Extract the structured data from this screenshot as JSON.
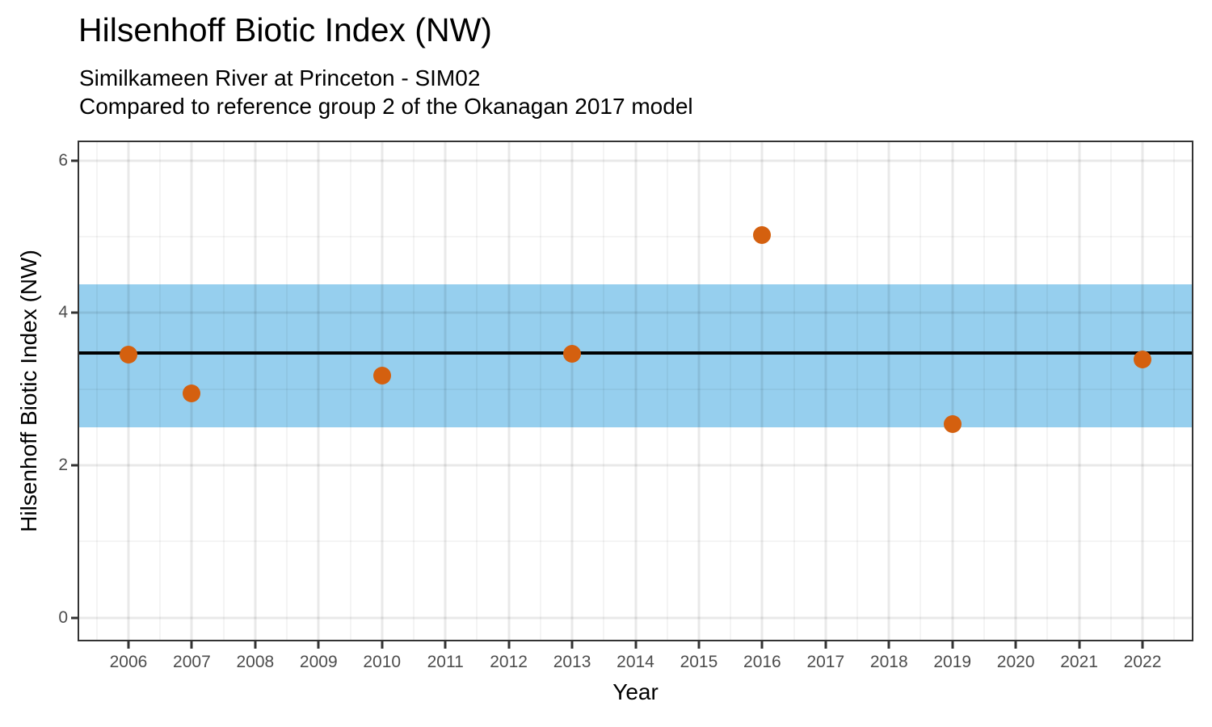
{
  "header": {
    "title": "Hilsenhoff Biotic Index (NW)",
    "subtitle1": "Similkameen River at Princeton - SIM02",
    "subtitle2": "Compared to reference group 2 of the Okanagan 2017 model"
  },
  "chart_data": {
    "type": "scatter",
    "title": "Hilsenhoff Biotic Index (NW)",
    "subtitle": [
      "Similkameen River at Princeton - SIM02",
      "Compared to reference group 2 of the Okanagan 2017 model"
    ],
    "xlabel": "Year",
    "ylabel": "Hilsenhoff Biotic Index (NW)",
    "x": [
      2006,
      2007,
      2010,
      2013,
      2016,
      2019,
      2022
    ],
    "y": [
      3.45,
      2.94,
      3.18,
      3.46,
      5.02,
      2.54,
      3.39
    ],
    "reference_line": 3.47,
    "reference_band": {
      "lower": 2.5,
      "upper": 4.37
    },
    "xlim": [
      2005.21,
      2022.79
    ],
    "ylim": [
      -0.3,
      6.25
    ],
    "x_ticks": [
      2006,
      2007,
      2008,
      2009,
      2010,
      2011,
      2012,
      2013,
      2014,
      2015,
      2016,
      2017,
      2018,
      2019,
      2020,
      2021,
      2022
    ],
    "x_tick_labels": [
      "2006",
      "2007",
      "2008",
      "2009",
      "2010",
      "2011",
      "2012",
      "2013",
      "2014",
      "2015",
      "2016",
      "2017",
      "2018",
      "2019",
      "2020",
      "2021",
      "2022"
    ],
    "y_ticks": [
      0,
      2,
      4,
      6
    ],
    "y_tick_labels": [
      "0",
      "2",
      "4",
      "6"
    ],
    "x_minor_ticks": [
      2005.5,
      2006.5,
      2007.5,
      2008.5,
      2009.5,
      2010.5,
      2011.5,
      2012.5,
      2013.5,
      2014.5,
      2015.5,
      2016.5,
      2017.5,
      2018.5,
      2019.5,
      2020.5,
      2021.5,
      2022.5
    ],
    "y_minor_ticks": [
      1,
      3,
      5
    ],
    "grid": "major+minor",
    "legend_position": "none",
    "colors": {
      "point": "#D4600F",
      "band": "#96CFEE",
      "reference_line": "#000000"
    }
  }
}
